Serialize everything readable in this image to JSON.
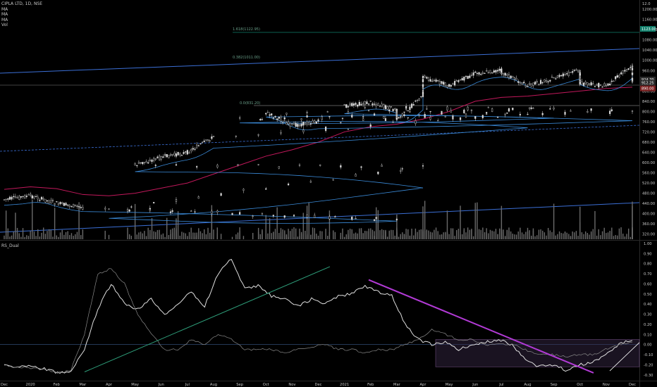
{
  "header": {
    "symbol_line": "CIPLA LTD, 1D, NSE",
    "indicators": [
      "MA",
      "MA",
      "MA",
      "Vol"
    ]
  },
  "lower_pane_title": "RS_Dual",
  "price_scale_top_label": "12.0",
  "fib_labels": {
    "upper": "1.618(1122.95)",
    "middle": "0.382(1011.00)",
    "lower": "0.0(831.20)"
  },
  "price_tags": [
    {
      "text": "1123.00",
      "color": "#12806c"
    },
    {
      "text": "924.70",
      "color": "#2a2a2a"
    },
    {
      "text": "912.25",
      "color": "#2a2a2a"
    },
    {
      "text": "890.00",
      "color": "#7a1f1f"
    }
  ],
  "colors": {
    "background": "#000000",
    "candles": "#d8d8d8",
    "ma_long": "#c2185b",
    "ma_short": "#3a8ad8",
    "channel": "#3b6fd6",
    "rs_trendline_up": "#2e9e7a",
    "rs_trendline_down": "#b23ad6",
    "rs_box": "#3a2a4a"
  },
  "chart_data": [
    {
      "type": "candlestick",
      "title": "CIPLA LTD, 1D, NSE",
      "y_ticks": [
        "1200.00",
        "1160.00",
        "1120.00",
        "1080.00",
        "1040.00",
        "1000.00",
        "960.00",
        "920.00",
        "880.00",
        "840.00",
        "800.00",
        "760.00",
        "720.00",
        "680.00",
        "640.00",
        "600.00",
        "560.00",
        "520.00",
        "480.00",
        "440.00",
        "400.00",
        "360.00",
        "320.00"
      ],
      "ylim": [
        300,
        1225
      ],
      "x_ticks": [
        "Dec",
        "2020",
        "Feb",
        "Mar",
        "Apr",
        "May",
        "Jun",
        "Jul",
        "Aug",
        "Sep",
        "Oct",
        "Nov",
        "Dec",
        "2021",
        "Feb",
        "Mar",
        "Apr",
        "May",
        "Jun",
        "Jul",
        "Aug",
        "Sep",
        "Oct",
        "Nov",
        "Dec"
      ],
      "close_path": [
        [
          "Dec",
          455
        ],
        [
          "2020",
          470
        ],
        [
          "Feb",
          440
        ],
        [
          "Mar",
          425
        ],
        [
          "Mar",
          375
        ],
        [
          "Apr",
          420
        ],
        [
          "Apr",
          580
        ],
        [
          "May",
          590
        ],
        [
          "Jun",
          620
        ],
        [
          "Jul",
          640
        ],
        [
          "Aug",
          700
        ],
        [
          "Aug",
          790
        ],
        [
          "Sep",
          770
        ],
        [
          "Sep",
          810
        ],
        [
          "Oct",
          795
        ],
        [
          "Nov",
          745
        ],
        [
          "Dec",
          760
        ],
        [
          "Dec",
          800
        ],
        [
          "2021",
          820
        ],
        [
          "Feb",
          835
        ],
        [
          "Mar",
          805
        ],
        [
          "Mar",
          770
        ],
        [
          "Apr",
          860
        ],
        [
          "Apr",
          935
        ],
        [
          "May",
          900
        ],
        [
          "Jun",
          950
        ],
        [
          "Jul",
          960
        ],
        [
          "Jul",
          955
        ],
        [
          "Aug",
          900
        ],
        [
          "Sep",
          930
        ],
        [
          "Oct",
          960
        ],
        [
          "Oct",
          910
        ],
        [
          "Nov",
          900
        ],
        [
          "Dec",
          980
        ],
        [
          "Dec",
          912
        ]
      ],
      "ma_long_path": [
        [
          "Dec",
          495
        ],
        [
          "2020",
          505
        ],
        [
          "Feb",
          498
        ],
        [
          "Mar",
          475
        ],
        [
          "Apr",
          470
        ],
        [
          "May",
          480
        ],
        [
          "Jun",
          500
        ],
        [
          "Jul",
          520
        ],
        [
          "Aug",
          555
        ],
        [
          "Sep",
          590
        ],
        [
          "Oct",
          625
        ],
        [
          "Nov",
          650
        ],
        [
          "Dec",
          680
        ],
        [
          "2021",
          720
        ],
        [
          "Feb",
          740
        ],
        [
          "Mar",
          750
        ],
        [
          "Apr",
          770
        ],
        [
          "May",
          800
        ],
        [
          "Jun",
          840
        ],
        [
          "Jul",
          855
        ],
        [
          "Aug",
          860
        ],
        [
          "Sep",
          870
        ],
        [
          "Oct",
          880
        ],
        [
          "Nov",
          890
        ],
        [
          "Dec",
          895
        ]
      ],
      "volume_note": "volume histogram at pane bottom"
    },
    {
      "type": "line",
      "title": "RS_Dual",
      "y_ticks": [
        "1.00",
        "0.90",
        "0.80",
        "0.70",
        "0.60",
        "0.50",
        "0.40",
        "0.30",
        "0.20",
        "0.10",
        "0.00",
        "-0.10",
        "-0.20",
        "-0.30"
      ],
      "ylim": [
        -0.35,
        1.02
      ],
      "series": [
        {
          "values": [
            -0.2,
            -0.22,
            -0.21,
            -0.24,
            -0.28,
            -0.27,
            -0.05,
            0.35,
            0.6,
            0.4,
            0.35,
            0.45,
            0.3,
            0.4,
            0.52,
            0.38,
            0.7,
            0.85,
            0.55,
            0.58,
            0.48,
            0.45,
            0.38,
            0.45,
            0.4,
            0.48,
            0.5,
            0.58,
            0.52,
            0.48,
            0.2,
            0.05,
            0.0,
            0.02,
            -0.05,
            0.0,
            0.02,
            0.05,
            0.0,
            -0.15,
            -0.22,
            -0.2,
            -0.25,
            -0.2,
            -0.18,
            -0.1,
            0.0,
            0.05
          ]
        },
        {
          "values": [
            -0.2,
            -0.22,
            -0.23,
            -0.25,
            -0.28,
            -0.25,
            0.1,
            0.7,
            0.75,
            0.6,
            0.3,
            0.1,
            -0.05,
            -0.05,
            0.05,
            0.0,
            0.1,
            0.05,
            -0.05,
            -0.05,
            -0.05,
            -0.08,
            -0.05,
            -0.02,
            0.0,
            -0.05,
            -0.05,
            -0.08,
            -0.05,
            -0.05,
            0.0,
            0.05,
            0.15,
            0.1,
            0.05,
            0.05,
            0.0,
            0.0,
            0.0,
            -0.05,
            -0.1,
            -0.1,
            -0.12,
            -0.1,
            -0.1,
            -0.05,
            0.0,
            0.02
          ]
        }
      ]
    }
  ]
}
